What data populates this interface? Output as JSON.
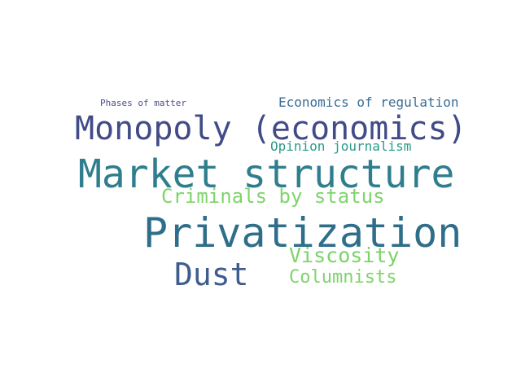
{
  "word_cloud": {
    "words": [
      {
        "text": "Phases of matter",
        "color": "#4b4f8c"
      },
      {
        "text": "Economics of regulation",
        "color": "#3a6d93"
      },
      {
        "text": "Monopoly (economics)",
        "color": "#414b87"
      },
      {
        "text": "Opinion journalism",
        "color": "#2a9a8a"
      },
      {
        "text": "Market structure",
        "color": "#2f7e8d"
      },
      {
        "text": "Criminals by status",
        "color": "#7fd46b"
      },
      {
        "text": "Privatization",
        "color": "#2e6e8a"
      },
      {
        "text": "Viscosity",
        "color": "#7ad466"
      },
      {
        "text": "Dust",
        "color": "#3f5c8f"
      },
      {
        "text": "Columnists",
        "color": "#7fd46b"
      }
    ]
  }
}
